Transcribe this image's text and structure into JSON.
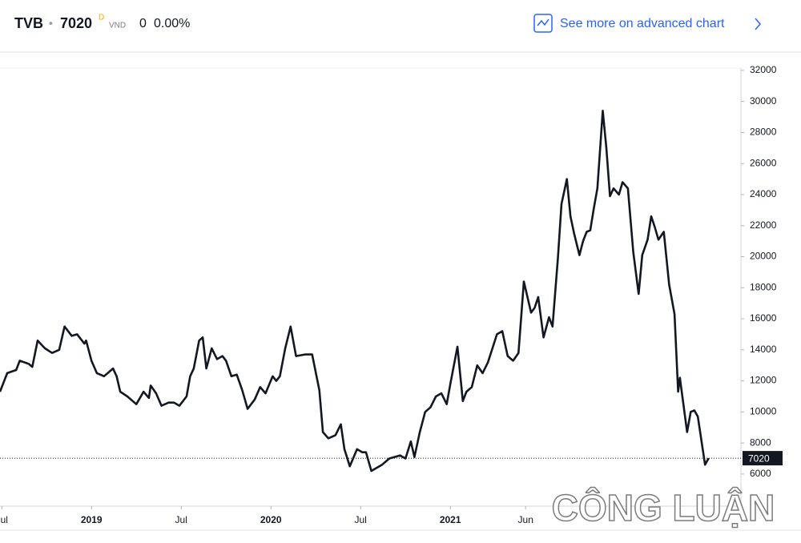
{
  "header": {
    "symbol": "TVB",
    "separator": "•",
    "price": 7020,
    "interval": "D",
    "currency": "VND",
    "change": 0,
    "change_percent": "0.00%",
    "link": "See more on advanced chart"
  },
  "watermark": "CÔNG LUẬN",
  "chart_data": {
    "type": "line",
    "color": "#131722",
    "x": [
      2018.49,
      2018.53,
      2018.58,
      2018.6,
      2018.65,
      2018.67,
      2018.7,
      2018.74,
      2018.78,
      2018.82,
      2018.85,
      2018.89,
      2018.92,
      2018.96,
      2018.97,
      2019.0,
      2019.03,
      2019.07,
      2019.12,
      2019.14,
      2019.16,
      2019.2,
      2019.25,
      2019.29,
      2019.32,
      2019.33,
      2019.36,
      2019.39,
      2019.43,
      2019.46,
      2019.49,
      2019.53,
      2019.55,
      2019.57,
      2019.6,
      2019.62,
      2019.64,
      2019.67,
      2019.7,
      2019.73,
      2019.75,
      2019.78,
      2019.81,
      2019.84,
      2019.87,
      2019.91,
      2019.94,
      2019.97,
      2020.01,
      2020.03,
      2020.05,
      2020.08,
      2020.11,
      2020.14,
      2020.19,
      2020.23,
      2020.27,
      2020.29,
      2020.32,
      2020.36,
      2020.39,
      2020.41,
      2020.44,
      2020.48,
      2020.51,
      2020.53,
      2020.56,
      2020.59,
      2020.62,
      2020.66,
      2020.69,
      2020.72,
      2020.75,
      2020.78,
      2020.8,
      2020.83,
      2020.86,
      2020.89,
      2020.92,
      2020.95,
      2020.98,
      2021.0,
      2021.04,
      2021.07,
      2021.09,
      2021.12,
      2021.15,
      2021.18,
      2021.21,
      2021.26,
      2021.29,
      2021.32,
      2021.35,
      2021.38,
      2021.41,
      2021.45,
      2021.47,
      2021.49,
      2021.52,
      2021.55,
      2021.57,
      2021.6,
      2021.62,
      2021.65,
      2021.67,
      2021.69,
      2021.72,
      2021.74,
      2021.76,
      2021.78,
      2021.8,
      2021.82,
      2021.85,
      2021.87,
      2021.89,
      2021.91,
      2021.94,
      2021.96,
      2021.99,
      2022.02,
      2022.05,
      2022.07,
      2022.1,
      2022.12,
      2022.14,
      2022.16,
      2022.19,
      2022.22,
      2022.25,
      2022.27,
      2022.28,
      2022.32,
      2022.34,
      2022.36,
      2022.38,
      2022.42,
      2022.44
    ],
    "values": [
      11300,
      12500,
      12700,
      13300,
      13100,
      12900,
      14600,
      14100,
      13800,
      14000,
      15500,
      14900,
      15000,
      14400,
      14600,
      13300,
      12500,
      12300,
      12800,
      12300,
      11300,
      11000,
      10500,
      11300,
      10900,
      11700,
      11200,
      10400,
      10600,
      10600,
      10400,
      11000,
      12300,
      12800,
      14600,
      14800,
      12800,
      14100,
      13400,
      13600,
      13300,
      12300,
      12400,
      11400,
      10200,
      10800,
      11600,
      11200,
      12300,
      12000,
      12300,
      14100,
      15500,
      13600,
      13700,
      13700,
      11400,
      8700,
      8300,
      8500,
      9200,
      7600,
      6500,
      7600,
      7400,
      7400,
      6200,
      6400,
      6600,
      7000,
      7100,
      7200,
      7000,
      8100,
      7100,
      8700,
      10000,
      10300,
      11000,
      11200,
      10500,
      11800,
      14200,
      10700,
      11300,
      11600,
      13000,
      12500,
      13200,
      15000,
      15200,
      13600,
      13300,
      13800,
      18400,
      16400,
      16700,
      17400,
      14800,
      16100,
      15500,
      19900,
      23400,
      25000,
      22600,
      21500,
      20100,
      21000,
      21600,
      21700,
      23100,
      24400,
      29400,
      27000,
      23900,
      24400,
      24000,
      24800,
      24400,
      20300,
      17600,
      20100,
      21100,
      22600,
      21900,
      21100,
      21600,
      18200,
      16300,
      11300,
      12200,
      8700,
      10000,
      10100,
      9700,
      6600,
      7020
    ],
    "xlim": [
      2018.49,
      2022.62
    ],
    "ylim": [
      3930,
      32150
    ],
    "xticks": [
      {
        "value": 2018.5,
        "label": "Jul"
      },
      2019,
      {
        "value": 2019.5,
        "label": "Jul"
      },
      2020,
      {
        "value": 2020.5,
        "label": "Jul"
      },
      2021,
      {
        "value": 2021.42,
        "label": "Jun"
      }
    ],
    "yticks": [
      6000,
      8000,
      10000,
      12000,
      14000,
      16000,
      18000,
      20000,
      22000,
      24000,
      26000,
      28000,
      30000,
      32000
    ]
  }
}
